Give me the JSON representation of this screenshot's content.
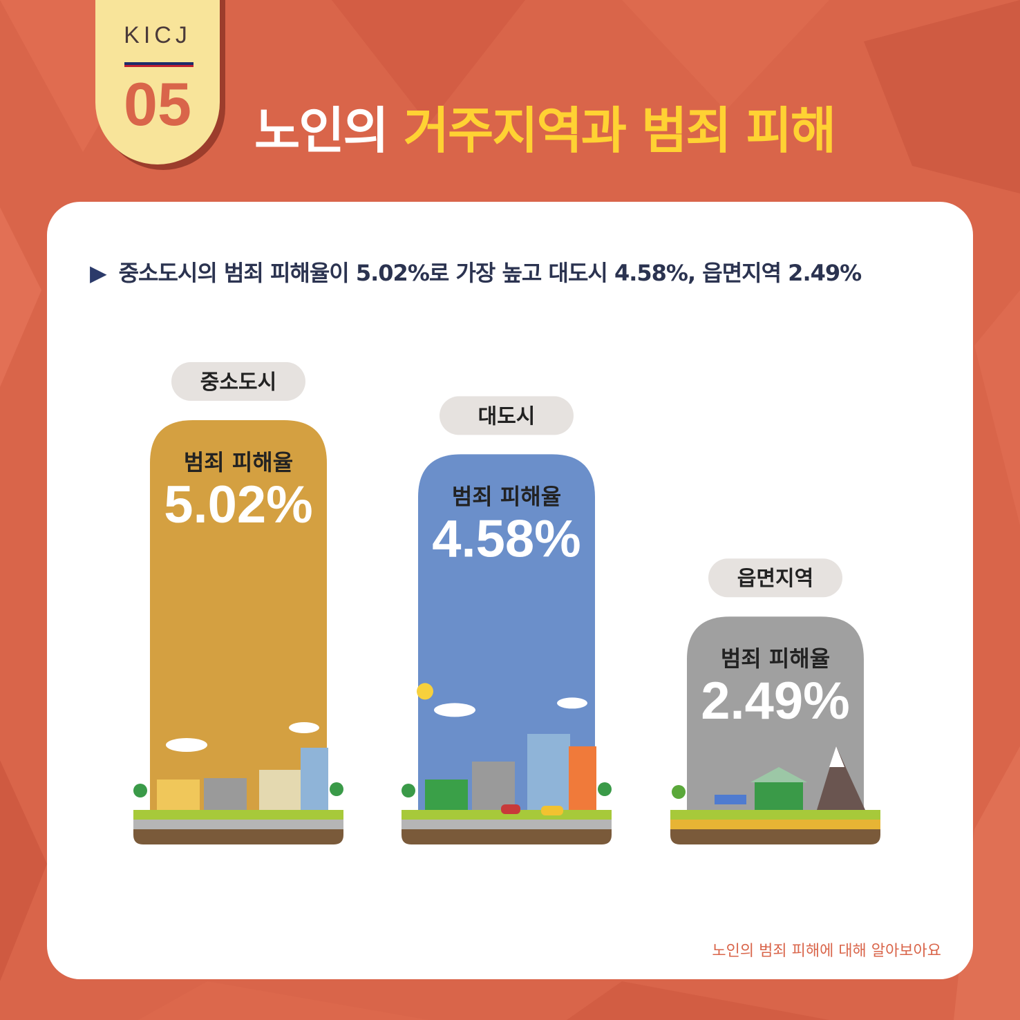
{
  "badge": {
    "org": "KICJ",
    "number": "05"
  },
  "title": {
    "part1": "노인의 ",
    "highlight": "거주지역과 범죄 피해"
  },
  "summary": "중소도시의 범죄 피해율이 5.02%로 가장 높고 대도시 4.58%, 읍면지역 2.49%",
  "footer": "노인의 범죄 피해에 대해 알아보아요",
  "colors": {
    "background": "#d9654a",
    "title_highlight": "#ffd233",
    "badge": "#f8e49a"
  },
  "chart_data": {
    "type": "bar",
    "categories": [
      "중소도시",
      "대도시",
      "읍면지역"
    ],
    "values": [
      5.02,
      4.58,
      2.49
    ],
    "value_labels": [
      "5.02%",
      "4.58%",
      "2.49%"
    ],
    "bar_label": "범죄 피해율",
    "unit": "%",
    "colors": [
      "#d4a041",
      "#6b8fca",
      "#a0a0a0"
    ],
    "icons": [
      "small-city-illustration",
      "big-city-illustration",
      "rural-village-illustration"
    ]
  }
}
